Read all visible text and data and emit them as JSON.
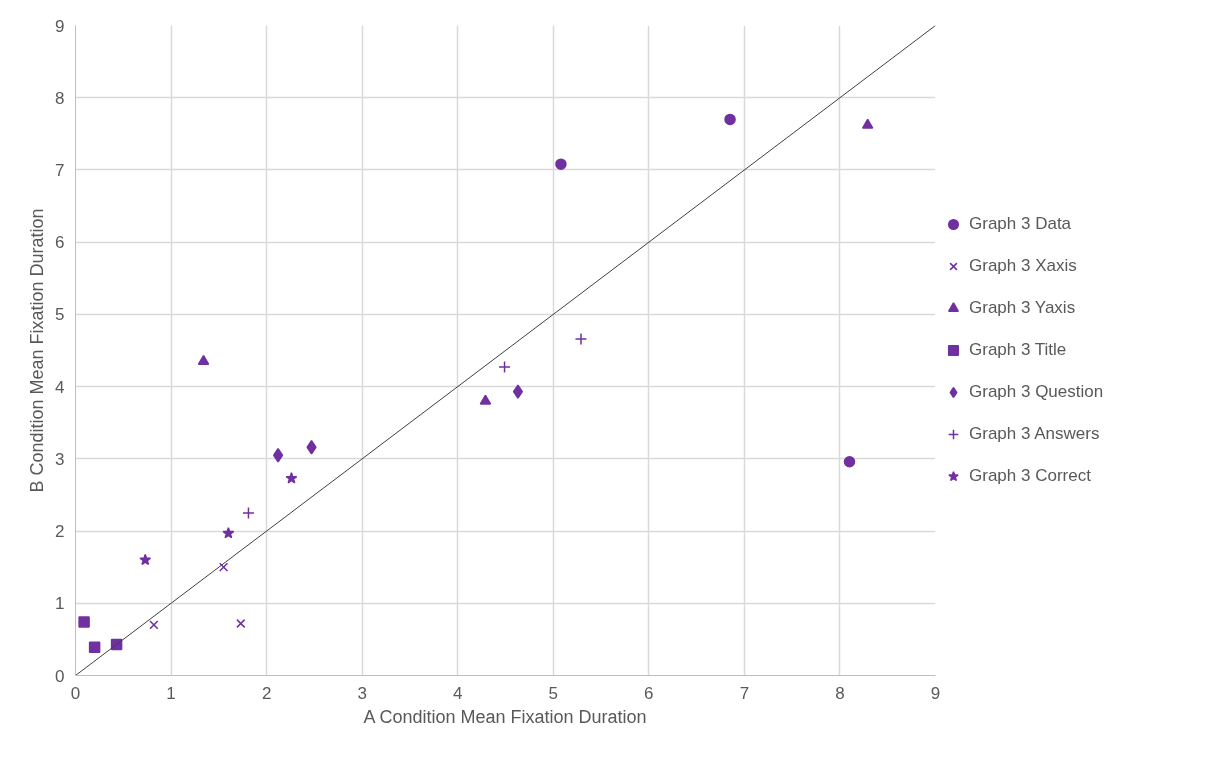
{
  "chart_data": {
    "type": "scatter",
    "xlabel": "A Condition Mean Fixation Duration",
    "ylabel": "B Condition Mean Fixation Duration",
    "xlim": [
      0,
      9
    ],
    "ylim": [
      0,
      9
    ],
    "xticks": [
      0,
      1,
      2,
      3,
      4,
      5,
      6,
      7,
      8,
      9
    ],
    "yticks": [
      0,
      1,
      2,
      3,
      4,
      5,
      6,
      7,
      8,
      9
    ],
    "grid": true,
    "legend": "right",
    "series": [
      {
        "name": "Graph 3 Data",
        "color": "#7030a0",
        "marker": "circle",
        "x": [
          5.08,
          6.85,
          8.1
        ],
        "values": [
          7.08,
          7.7,
          2.96
        ]
      },
      {
        "name": "Graph 3 Xaxis",
        "color": "#7030a0",
        "marker": "x",
        "x": [
          0.82,
          1.73,
          1.55
        ],
        "values": [
          0.7,
          0.72,
          1.5
        ]
      },
      {
        "name": "Graph 3 Yaxis",
        "color": "#7030a0",
        "marker": "triangle",
        "x": [
          1.34,
          4.29,
          8.29
        ],
        "values": [
          4.35,
          3.8,
          7.62
        ]
      },
      {
        "name": "Graph 3 Title",
        "color": "#7030a0",
        "marker": "square",
        "x": [
          0.09,
          0.2,
          0.43
        ],
        "values": [
          0.74,
          0.39,
          0.43
        ]
      },
      {
        "name": "Graph 3 Question",
        "color": "#7030a0",
        "marker": "diamond",
        "x": [
          2.12,
          2.47,
          4.63
        ],
        "values": [
          3.05,
          3.16,
          3.93
        ]
      },
      {
        "name": "Graph 3 Answers",
        "color": "#7030a0",
        "marker": "cross",
        "x": [
          1.81,
          4.49,
          5.29
        ],
        "values": [
          2.25,
          4.27,
          4.66
        ]
      },
      {
        "name": "Graph 3 Correct",
        "color": "#7030a0",
        "marker": "star",
        "x": [
          0.73,
          1.6,
          2.26
        ],
        "values": [
          1.6,
          1.97,
          2.73
        ]
      },
      {
        "type": "line",
        "color": "#404040",
        "x": [
          0,
          9
        ],
        "values": [
          0,
          9
        ]
      }
    ]
  }
}
